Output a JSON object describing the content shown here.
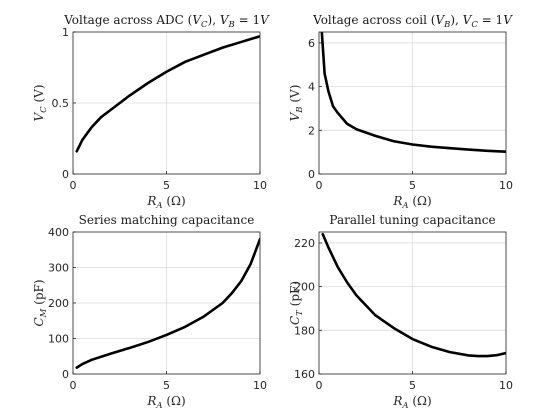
{
  "chart_data": [
    {
      "type": "line",
      "title": "Voltage across ADC (V_C), V_B = 1V",
      "title_parts": [
        "Voltage across ADC (",
        "V",
        "C",
        "), ",
        "V",
        "B",
        " = 1",
        "V"
      ],
      "xlabel": "R_A (Ω)",
      "ylabel": "V_C (V)",
      "xlabel_parts": [
        "R",
        "A",
        " (Ω)"
      ],
      "ylabel_parts": [
        "V",
        "C",
        " (V)"
      ],
      "xlim": [
        0,
        10
      ],
      "ylim": [
        0,
        1
      ],
      "xticks": [
        0,
        5,
        10
      ],
      "xtick_labels": [
        "0",
        "5",
        "10"
      ],
      "yticks": [
        0,
        0.5,
        1
      ],
      "ytick_labels": [
        "0",
        "0.5",
        "1"
      ],
      "grid": true,
      "series": [
        {
          "x": [
            0.2,
            0.5,
            1,
            1.5,
            2,
            3,
            4,
            5,
            6,
            7,
            8,
            9,
            10
          ],
          "y": [
            0.16,
            0.24,
            0.33,
            0.4,
            0.45,
            0.55,
            0.64,
            0.72,
            0.79,
            0.84,
            0.89,
            0.93,
            0.97
          ]
        }
      ]
    },
    {
      "type": "line",
      "title": "Voltage across coil (V_B), V_C = 1V",
      "title_parts": [
        "Voltage across coil (",
        "V",
        "B",
        "), ",
        "V",
        "C",
        " = 1",
        "V"
      ],
      "xlabel": "R_A (Ω)",
      "ylabel": "V_B (V)",
      "xlabel_parts": [
        "R",
        "A",
        " (Ω)"
      ],
      "ylabel_parts": [
        "V",
        "B",
        " (V)"
      ],
      "xlim": [
        0,
        10
      ],
      "ylim": [
        0,
        6.5
      ],
      "xticks": [
        0,
        5,
        10
      ],
      "xtick_labels": [
        "0",
        "5",
        "10"
      ],
      "yticks": [
        0,
        2,
        4,
        6
      ],
      "ytick_labels": [
        "0",
        "2",
        "4",
        "6"
      ],
      "grid": true,
      "series": [
        {
          "x": [
            0.15,
            0.3,
            0.5,
            0.75,
            1,
            1.5,
            2,
            3,
            4,
            5,
            6,
            7,
            8,
            9,
            10
          ],
          "y": [
            6.5,
            4.6,
            3.8,
            3.1,
            2.8,
            2.3,
            2.05,
            1.75,
            1.5,
            1.35,
            1.25,
            1.18,
            1.12,
            1.06,
            1.02
          ]
        }
      ]
    },
    {
      "type": "line",
      "title": "Series matching capacitance",
      "title_parts": [
        "Series matching capacitance"
      ],
      "xlabel": "R_A (Ω)",
      "ylabel": "C_M (pF)",
      "xlabel_parts": [
        "R",
        "A",
        " (Ω)"
      ],
      "ylabel_parts": [
        "C",
        "M",
        " (pF)"
      ],
      "xlim": [
        0,
        10
      ],
      "ylim": [
        0,
        400
      ],
      "xticks": [
        0,
        5,
        10
      ],
      "xtick_labels": [
        "0",
        "5",
        "10"
      ],
      "yticks": [
        0,
        100,
        200,
        300,
        400
      ],
      "ytick_labels": [
        "0",
        "100",
        "200",
        "300",
        "400"
      ],
      "grid": true,
      "series": [
        {
          "x": [
            0.2,
            0.5,
            1,
            2,
            3,
            4,
            5,
            6,
            7,
            8,
            8.5,
            9,
            9.5,
            10
          ],
          "y": [
            18,
            28,
            40,
            57,
            73,
            90,
            110,
            133,
            162,
            200,
            228,
            262,
            310,
            380
          ]
        }
      ]
    },
    {
      "type": "line",
      "title": "Parallel tuning capacitance",
      "title_parts": [
        "Parallel tuning capacitance"
      ],
      "xlabel": "R_A (Ω)",
      "ylabel": "C_T (pF)",
      "xlabel_parts": [
        "R",
        "A",
        " (Ω)"
      ],
      "ylabel_parts": [
        "C",
        "T",
        " (pF)"
      ],
      "xlim": [
        0,
        10
      ],
      "ylim": [
        160,
        225
      ],
      "xticks": [
        0,
        5,
        10
      ],
      "xtick_labels": [
        "0",
        "5",
        "10"
      ],
      "yticks": [
        160,
        180,
        200,
        220
      ],
      "ytick_labels": [
        "160",
        "180",
        "200",
        "220"
      ],
      "grid": true,
      "series": [
        {
          "x": [
            0.2,
            0.5,
            1,
            1.5,
            2,
            3,
            4,
            5,
            6,
            7,
            8,
            8.5,
            9,
            9.5,
            10
          ],
          "y": [
            224,
            218,
            209,
            202,
            196,
            187,
            181,
            176,
            172.5,
            170,
            168.5,
            168.2,
            168.2,
            168.6,
            169.6
          ]
        }
      ]
    }
  ]
}
